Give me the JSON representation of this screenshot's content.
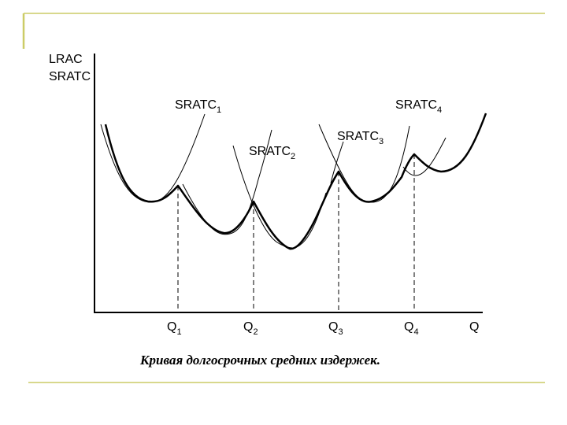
{
  "decor_color": "#cccc66",
  "axes": {
    "y_label_line1": "LRAC",
    "y_label_line2": "SRATC",
    "x_label": "Q"
  },
  "curves": [
    {
      "name": "SRATC",
      "sub": "1"
    },
    {
      "name": "SRATC",
      "sub": "2"
    },
    {
      "name": "SRATC",
      "sub": "3"
    },
    {
      "name": "SRATC",
      "sub": "4"
    }
  ],
  "quantities": [
    {
      "name": "Q",
      "sub": "1"
    },
    {
      "name": "Q",
      "sub": "2"
    },
    {
      "name": "Q",
      "sub": "3"
    },
    {
      "name": "Q",
      "sub": "4"
    }
  ],
  "caption": "Кривая долгосрочных средних издержек."
}
